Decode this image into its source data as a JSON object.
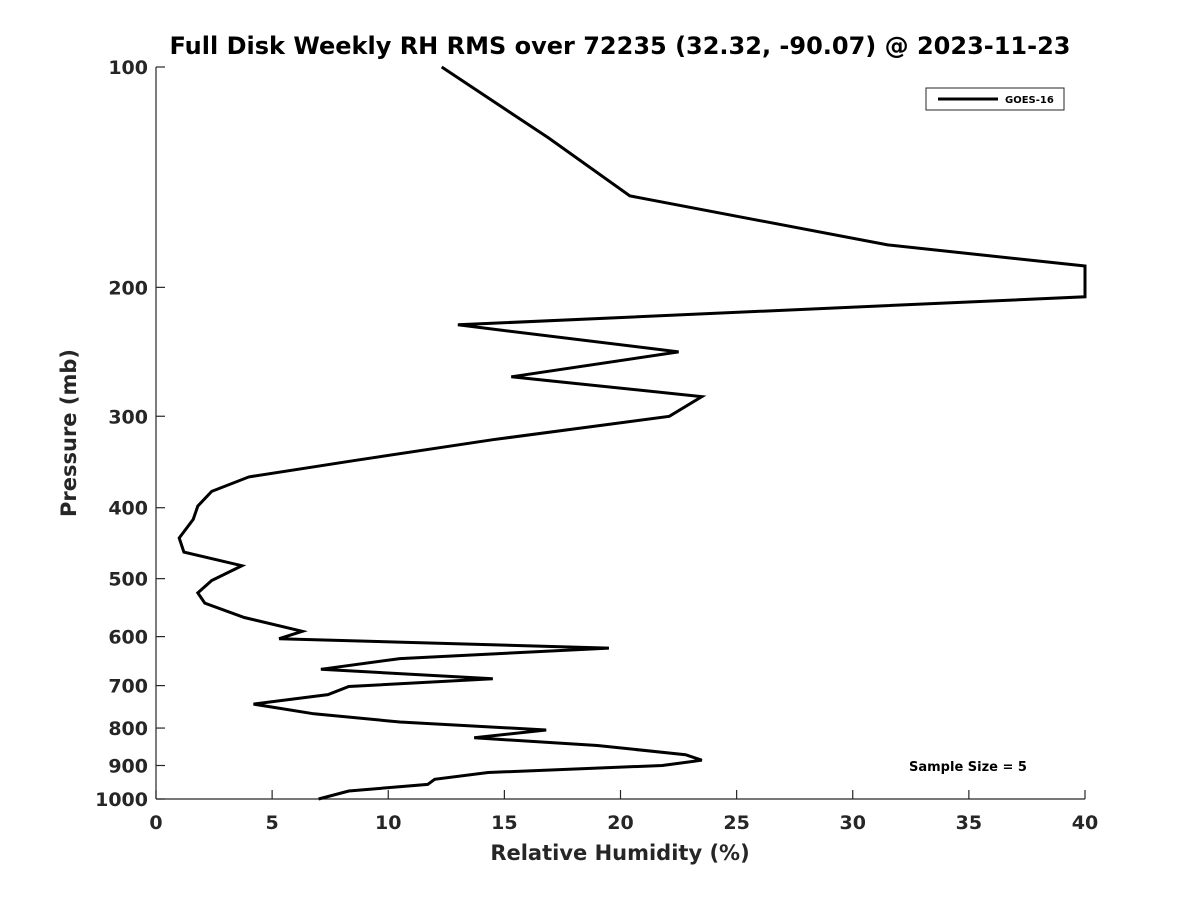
{
  "chart_data": {
    "type": "line",
    "title": "Full Disk Weekly RH RMS over 72235 (32.32, -90.07) @ 2023-11-23",
    "xlabel": "Relative Humidity (%)",
    "ylabel": "Pressure (mb)",
    "xlim": [
      0,
      40
    ],
    "ylim": [
      100,
      1000
    ],
    "y_scale": "log",
    "y_reversed": true,
    "grid": false,
    "legend_position": "top-right",
    "x_ticks": [
      0,
      5,
      10,
      15,
      20,
      25,
      30,
      35,
      40
    ],
    "y_ticks": [
      100,
      200,
      300,
      400,
      500,
      600,
      700,
      800,
      900,
      1000
    ],
    "annotation": "Sample Size = 5",
    "series": [
      {
        "name": "GOES-16",
        "color": "#000000",
        "points": [
          [
            12.3,
            100
          ],
          [
            16.9,
            125
          ],
          [
            20.4,
            150
          ],
          [
            31.5,
            175
          ],
          [
            40.0,
            187
          ],
          [
            40.0,
            206
          ],
          [
            13.0,
            225
          ],
          [
            22.5,
            245
          ],
          [
            15.3,
            265
          ],
          [
            23.5,
            282
          ],
          [
            22.1,
            300
          ],
          [
            14.5,
            323
          ],
          [
            8.5,
            345
          ],
          [
            4.0,
            363
          ],
          [
            2.4,
            380
          ],
          [
            1.8,
            398
          ],
          [
            1.6,
            415
          ],
          [
            1.0,
            440
          ],
          [
            1.2,
            460
          ],
          [
            3.7,
            480
          ],
          [
            2.4,
            503
          ],
          [
            1.8,
            523
          ],
          [
            2.1,
            540
          ],
          [
            3.8,
            565
          ],
          [
            6.3,
            590
          ],
          [
            5.3,
            604
          ],
          [
            19.5,
            622
          ],
          [
            10.5,
            643
          ],
          [
            7.1,
            665
          ],
          [
            14.5,
            685
          ],
          [
            8.3,
            702
          ],
          [
            7.4,
            720
          ],
          [
            4.2,
            742
          ],
          [
            6.8,
            765
          ],
          [
            10.5,
            785
          ],
          [
            16.8,
            805
          ],
          [
            13.7,
            825
          ],
          [
            19.0,
            845
          ],
          [
            22.8,
            870
          ],
          [
            23.5,
            885
          ],
          [
            21.8,
            900
          ],
          [
            14.3,
            920
          ],
          [
            12.0,
            940
          ],
          [
            11.7,
            955
          ],
          [
            8.3,
            975
          ],
          [
            7.0,
            1000
          ]
        ]
      }
    ]
  }
}
